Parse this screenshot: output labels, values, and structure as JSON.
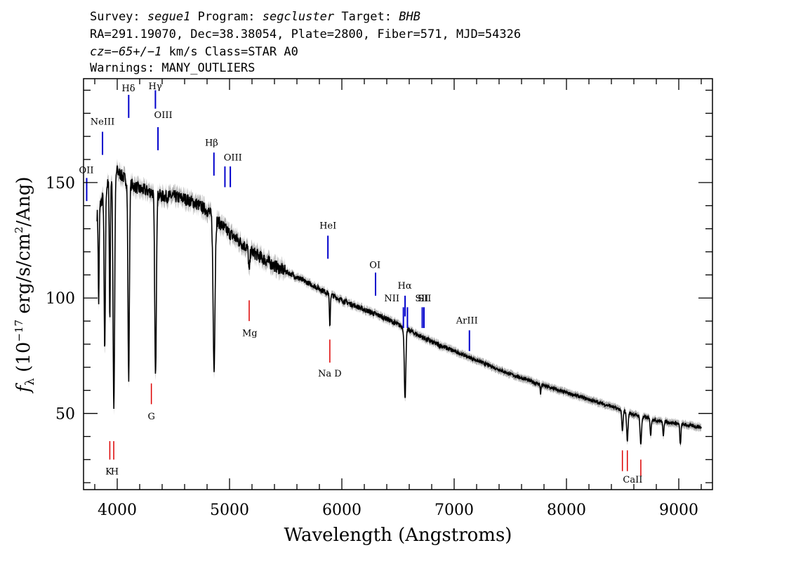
{
  "header": {
    "line1": {
      "survey_label": "Survey:",
      "survey": "segue1",
      "program_label": "Program:",
      "program": "segcluster",
      "target_label": "Target:",
      "target": "BHB"
    },
    "line2": "RA=291.19070, Dec=38.38054, Plate=2800, Fiber=571, MJD=54326",
    "line3": {
      "cz": "cz=−65+/−1",
      "rest": "km/s Class=STAR A0"
    },
    "line4": "Warnings: MANY_OUTLIERS"
  },
  "chart_data": {
    "type": "line",
    "xlabel": "Wavelength (Angstroms)",
    "ylabel": {
      "f": "f",
      "sub": "λ",
      "pre": "(10",
      "exp1": "−17",
      "mid": "erg/s/cm",
      "exp2": "2",
      "post": "/Ang)"
    },
    "xlim": [
      3700,
      9300
    ],
    "ylim": [
      17,
      195
    ],
    "x_ticks": [
      4000,
      5000,
      6000,
      7000,
      8000,
      9000
    ],
    "y_ticks": [
      50,
      100,
      150
    ],
    "colors": {
      "spectrum": "#000000",
      "error": "#b0b0b0",
      "emission": "#0000cc",
      "absorption": "#dd0000"
    },
    "continuum": [
      [
        3820,
        136
      ],
      [
        3900,
        148
      ],
      [
        4000,
        155
      ],
      [
        4100,
        150
      ],
      [
        4200,
        147
      ],
      [
        4300,
        146
      ],
      [
        4400,
        144
      ],
      [
        4500,
        144
      ],
      [
        4600,
        143
      ],
      [
        4700,
        141
      ],
      [
        4800,
        138
      ],
      [
        4900,
        133
      ],
      [
        5000,
        128
      ],
      [
        5100,
        124
      ],
      [
        5200,
        120
      ],
      [
        5400,
        114
      ],
      [
        5600,
        109
      ],
      [
        5800,
        104
      ],
      [
        6000,
        99
      ],
      [
        6200,
        95
      ],
      [
        6400,
        91
      ],
      [
        6600,
        86
      ],
      [
        6800,
        81
      ],
      [
        7000,
        77
      ],
      [
        7200,
        73
      ],
      [
        7500,
        67
      ],
      [
        7800,
        62
      ],
      [
        8000,
        59
      ],
      [
        8200,
        56
      ],
      [
        8400,
        53
      ],
      [
        8600,
        49.5
      ],
      [
        8800,
        47
      ],
      [
        9000,
        45.5
      ],
      [
        9200,
        44
      ]
    ],
    "absorption_features": [
      {
        "x": 3835,
        "depth": 40,
        "width": 6
      },
      {
        "x": 3889,
        "depth": 70,
        "width": 8
      },
      {
        "x": 3934,
        "depth": 60,
        "width": 6
      },
      {
        "x": 3970,
        "depth": 100,
        "width": 10
      },
      {
        "x": 4102,
        "depth": 85,
        "width": 9
      },
      {
        "x": 4341,
        "depth": 80,
        "width": 10
      },
      {
        "x": 4862,
        "depth": 65,
        "width": 12
      },
      {
        "x": 5175,
        "depth": 10,
        "width": 8
      },
      {
        "x": 5893,
        "depth": 14,
        "width": 6
      },
      {
        "x": 6563,
        "depth": 30,
        "width": 10
      },
      {
        "x": 7770,
        "depth": 4,
        "width": 5
      },
      {
        "x": 8498,
        "depth": 9,
        "width": 8
      },
      {
        "x": 8542,
        "depth": 12,
        "width": 9
      },
      {
        "x": 8662,
        "depth": 12,
        "width": 9
      },
      {
        "x": 8750,
        "depth": 7,
        "width": 7
      },
      {
        "x": 8862,
        "depth": 6,
        "width": 7
      },
      {
        "x": 9014,
        "depth": 9,
        "width": 7
      }
    ],
    "emission_lines": [
      {
        "label": "OII",
        "x": 3728,
        "ymin": 142,
        "ymax": 152,
        "label_y": 154,
        "label_x": 3725
      },
      {
        "label": "NeIII",
        "x": 3869,
        "ymin": 162,
        "ymax": 172,
        "label_y": 175,
        "label_x": 3869
      },
      {
        "label": "Hδ",
        "x": 4102,
        "ymin": 178,
        "ymax": 188,
        "label_y": 189.5,
        "label_x": 4100
      },
      {
        "label": "Hγ",
        "x": 4340,
        "ymin": 182,
        "ymax": 190,
        "label_y": 190.5,
        "label_x": 4338
      },
      {
        "label": "OIII",
        "x": 4363,
        "ymin": 164,
        "ymax": 174,
        "label_y": 178,
        "label_x": 4410
      },
      {
        "label": "Hβ",
        "x": 4861,
        "ymin": 153,
        "ymax": 163,
        "label_y": 166,
        "label_x": 4840
      },
      {
        "label": "OIII",
        "x": 4959,
        "ymin": 148,
        "ymax": 157,
        "label_y": 159.5,
        "label_x": 5030
      },
      {
        "label": "OIII",
        "x": 5007,
        "ymin": 148,
        "ymax": 157
      },
      {
        "label": "HeI",
        "x": 5876,
        "ymin": 117,
        "ymax": 127,
        "label_y": 130,
        "label_x": 5876
      },
      {
        "label": "OI",
        "x": 6300,
        "ymin": 101,
        "ymax": 111,
        "label_y": 113,
        "label_x": 6295
      },
      {
        "label": "Hα",
        "x": 6563,
        "ymin": 92,
        "ymax": 101,
        "label_y": 104,
        "label_x": 6560
      },
      {
        "label": "NII",
        "x": 6548,
        "ymin": 87,
        "ymax": 96,
        "label_y": 98.5,
        "label_x": 6445
      },
      {
        "label": "NII",
        "x": 6584,
        "ymin": 87,
        "ymax": 96
      },
      {
        "label": "SII",
        "x": 6716,
        "ymin": 87,
        "ymax": 96,
        "label_y": 98.5,
        "label_x": 6712
      },
      {
        "label": "SII",
        "x": 6731,
        "ymin": 87,
        "ymax": 96,
        "label_y": 98.5,
        "label_x": 6736
      },
      {
        "label": "ArIII",
        "x": 7136,
        "ymin": 77,
        "ymax": 86,
        "label_y": 89,
        "label_x": 7114
      }
    ],
    "absorption_lines": [
      {
        "label": "K",
        "x": 3934,
        "ymin": 30,
        "ymax": 38,
        "label_y": 23.5,
        "label_x": 3925
      },
      {
        "label": "H",
        "x": 3969,
        "ymin": 30,
        "ymax": 38,
        "label_y": 23.5,
        "label_x": 3978
      },
      {
        "label": "G",
        "x": 4304,
        "ymin": 54,
        "ymax": 63,
        "label_y": 47.5,
        "label_x": 4304
      },
      {
        "label": "Mg",
        "x": 5175,
        "ymin": 90,
        "ymax": 99,
        "label_y": 83.5,
        "label_x": 5180
      },
      {
        "label": "Na D",
        "x": 5893,
        "ymin": 72,
        "ymax": 82,
        "label_y": 66,
        "label_x": 5893
      },
      {
        "label": "CaII",
        "x": 8498,
        "ymin": 25,
        "ymax": 34,
        "label_y": 20,
        "label_x": 8590
      },
      {
        "label": "CaII",
        "x": 8542,
        "ymin": 25,
        "ymax": 34
      },
      {
        "label": "CaII",
        "x": 8662,
        "ymin": 23,
        "ymax": 30
      }
    ]
  }
}
